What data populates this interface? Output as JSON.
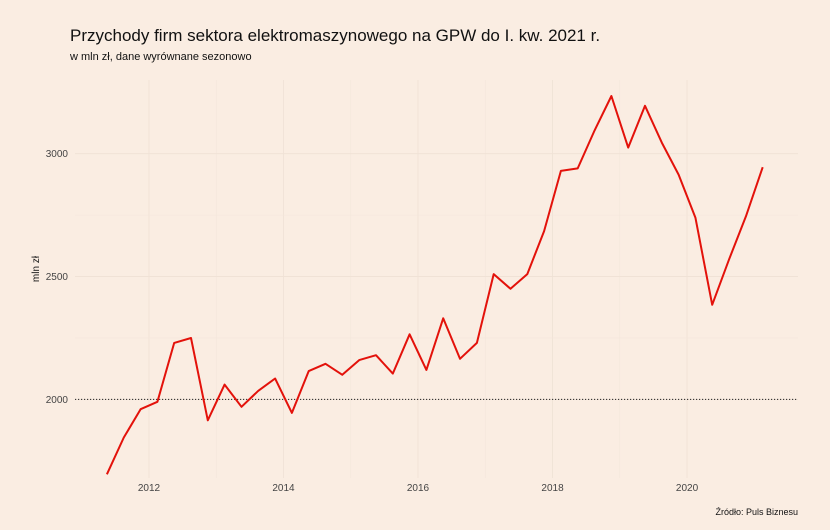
{
  "chart_data": {
    "type": "line",
    "title": "Przychody firm sektora elektromaszynowego na GPW do I. kw. 2021 r.",
    "subtitle": "w mln zł, dane wyrównane sezonowo",
    "ylabel": "mln zł",
    "xlabel": "",
    "source": "Źródło: Puls Biznesu",
    "xlim": [
      2010.9,
      2021.65
    ],
    "ylim": [
      1680,
      3300
    ],
    "x_ticks": [
      2012,
      2014,
      2016,
      2018,
      2020
    ],
    "x_tick_labels": [
      "2012",
      "2014",
      "2016",
      "2018",
      "2020"
    ],
    "y_ticks": [
      2000,
      2500,
      3000
    ],
    "y_tick_labels": [
      "2000",
      "2500",
      "3000"
    ],
    "reference_line": 2000,
    "grid": true,
    "line_color": "#E3120B",
    "series": [
      {
        "x": [
          2011.375,
          2011.625,
          2011.875,
          2012.125,
          2012.375,
          2012.625,
          2012.875,
          2013.125,
          2013.375,
          2013.625,
          2013.875,
          2014.125,
          2014.375,
          2014.625,
          2014.875,
          2015.125,
          2015.375,
          2015.625,
          2015.875,
          2016.125,
          2016.375,
          2016.625,
          2016.875,
          2017.125,
          2017.375,
          2017.625,
          2017.875,
          2018.125,
          2018.375,
          2018.625,
          2018.875,
          2019.125,
          2019.375,
          2019.625,
          2019.875,
          2020.125,
          2020.375,
          2020.625,
          2020.875,
          2021.125
        ],
        "values": [
          1695,
          1845,
          1960,
          1990,
          2230,
          2250,
          1915,
          2060,
          1970,
          2035,
          2085,
          1945,
          2115,
          2145,
          2100,
          2160,
          2180,
          2105,
          2265,
          2120,
          2330,
          2165,
          2230,
          2510,
          2450,
          2510,
          2685,
          2930,
          2940,
          3095,
          3235,
          3025,
          3195,
          3045,
          2915,
          2740,
          2385,
          2570,
          2745,
          2945
        ]
      }
    ]
  }
}
